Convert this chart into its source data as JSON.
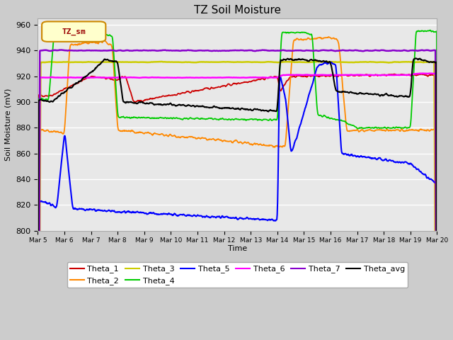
{
  "title": "TZ Soil Moisture",
  "xlabel": "Time",
  "ylabel": "Soil Moisture (mV)",
  "ylim": [
    800,
    965
  ],
  "yticks": [
    800,
    820,
    840,
    860,
    880,
    900,
    920,
    940,
    960
  ],
  "legend_label": "TZ_sm",
  "x_labels": [
    "Mar 5",
    "Mar 6",
    "Mar 7",
    "Mar 8",
    "Mar 9",
    "Mar 10",
    "Mar 11",
    "Mar 12",
    "Mar 13",
    "Mar 14",
    "Mar 15",
    "Mar 16",
    "Mar 17",
    "Mar 18",
    "Mar 19",
    "Mar 20"
  ],
  "colors": {
    "Theta_1": "#cc0000",
    "Theta_2": "#ff8800",
    "Theta_3": "#cccc00",
    "Theta_4": "#00cc00",
    "Theta_5": "#0000ff",
    "Theta_6": "#ff00ff",
    "Theta_7": "#8800cc",
    "Theta_avg": "#000000"
  }
}
